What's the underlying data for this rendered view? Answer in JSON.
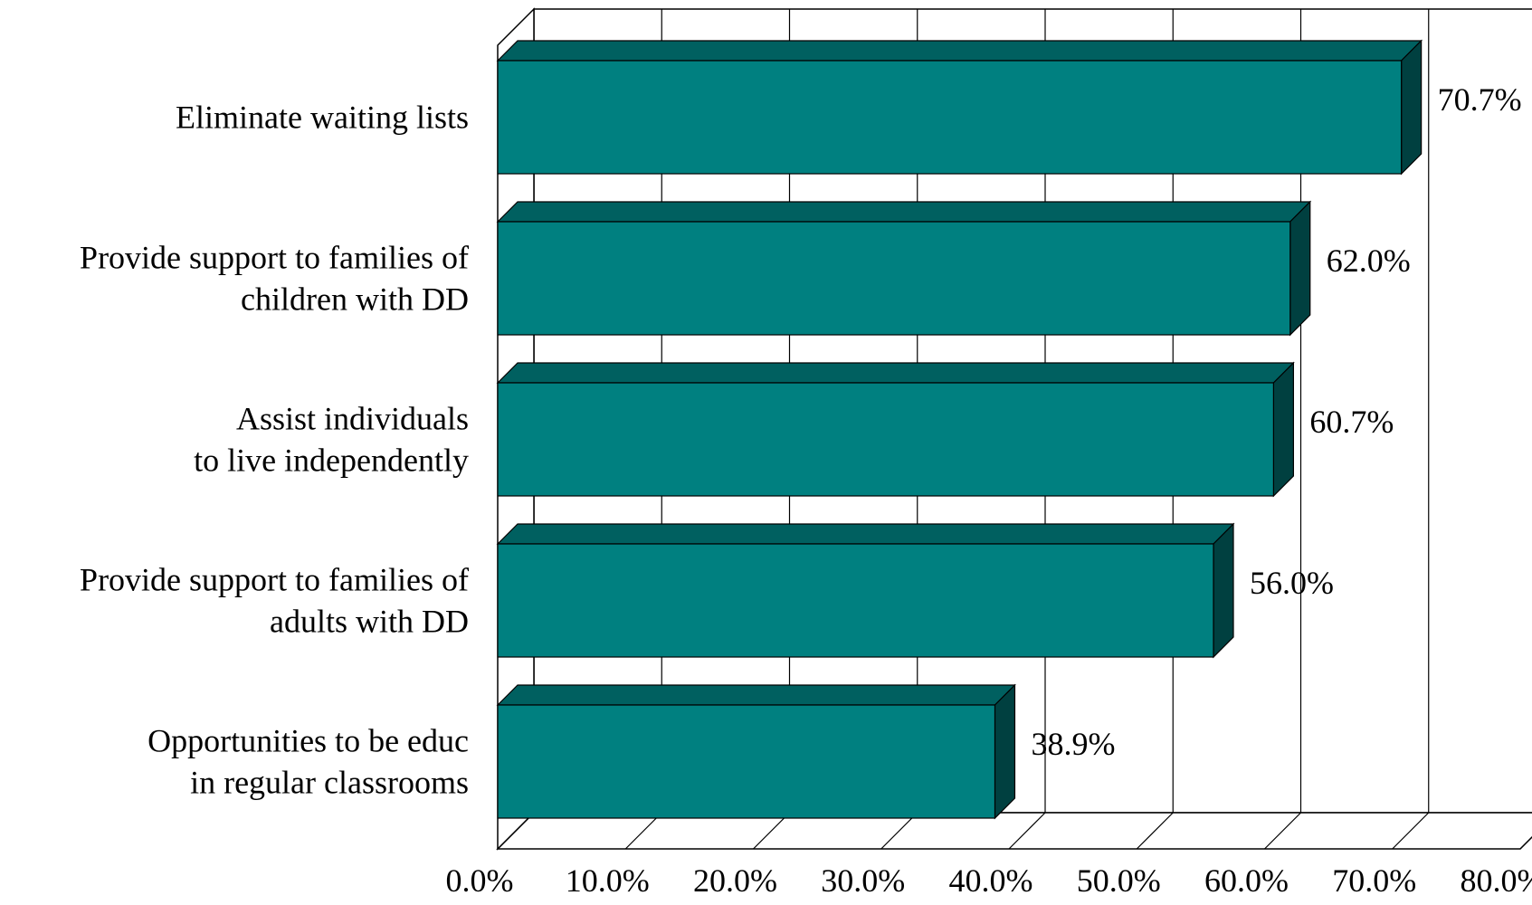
{
  "chart_data": {
    "type": "bar",
    "orientation": "horizontal",
    "three_d": true,
    "title": "",
    "xlabel": "",
    "ylabel": "",
    "xlim": [
      0,
      80
    ],
    "x_ticks": [
      0,
      10,
      20,
      30,
      40,
      50,
      60,
      70,
      80
    ],
    "x_tick_labels": [
      "0.0%",
      "10.0%",
      "20.0%",
      "30.0%",
      "40.0%",
      "50.0%",
      "60.0%",
      "70.0%",
      "80.0%"
    ],
    "grid": "vertical",
    "legend": "none",
    "categories": [
      [
        "Eliminate waiting lists"
      ],
      [
        "Provide support to families of",
        "children with DD"
      ],
      [
        "Assist individuals",
        "to live independently"
      ],
      [
        "Provide support to families of",
        "adults with DD"
      ],
      [
        "Opportunities to be educ",
        "in regular classrooms"
      ]
    ],
    "values": [
      70.7,
      62.0,
      60.7,
      56.0,
      38.9
    ],
    "data_labels": [
      "70.7%",
      "62.0%",
      "60.7%",
      "56.0%",
      "38.9%"
    ],
    "colors": {
      "bar_front": "#008080",
      "bar_top": "#006060",
      "bar_side": "#004040",
      "outline": "#000000"
    }
  }
}
